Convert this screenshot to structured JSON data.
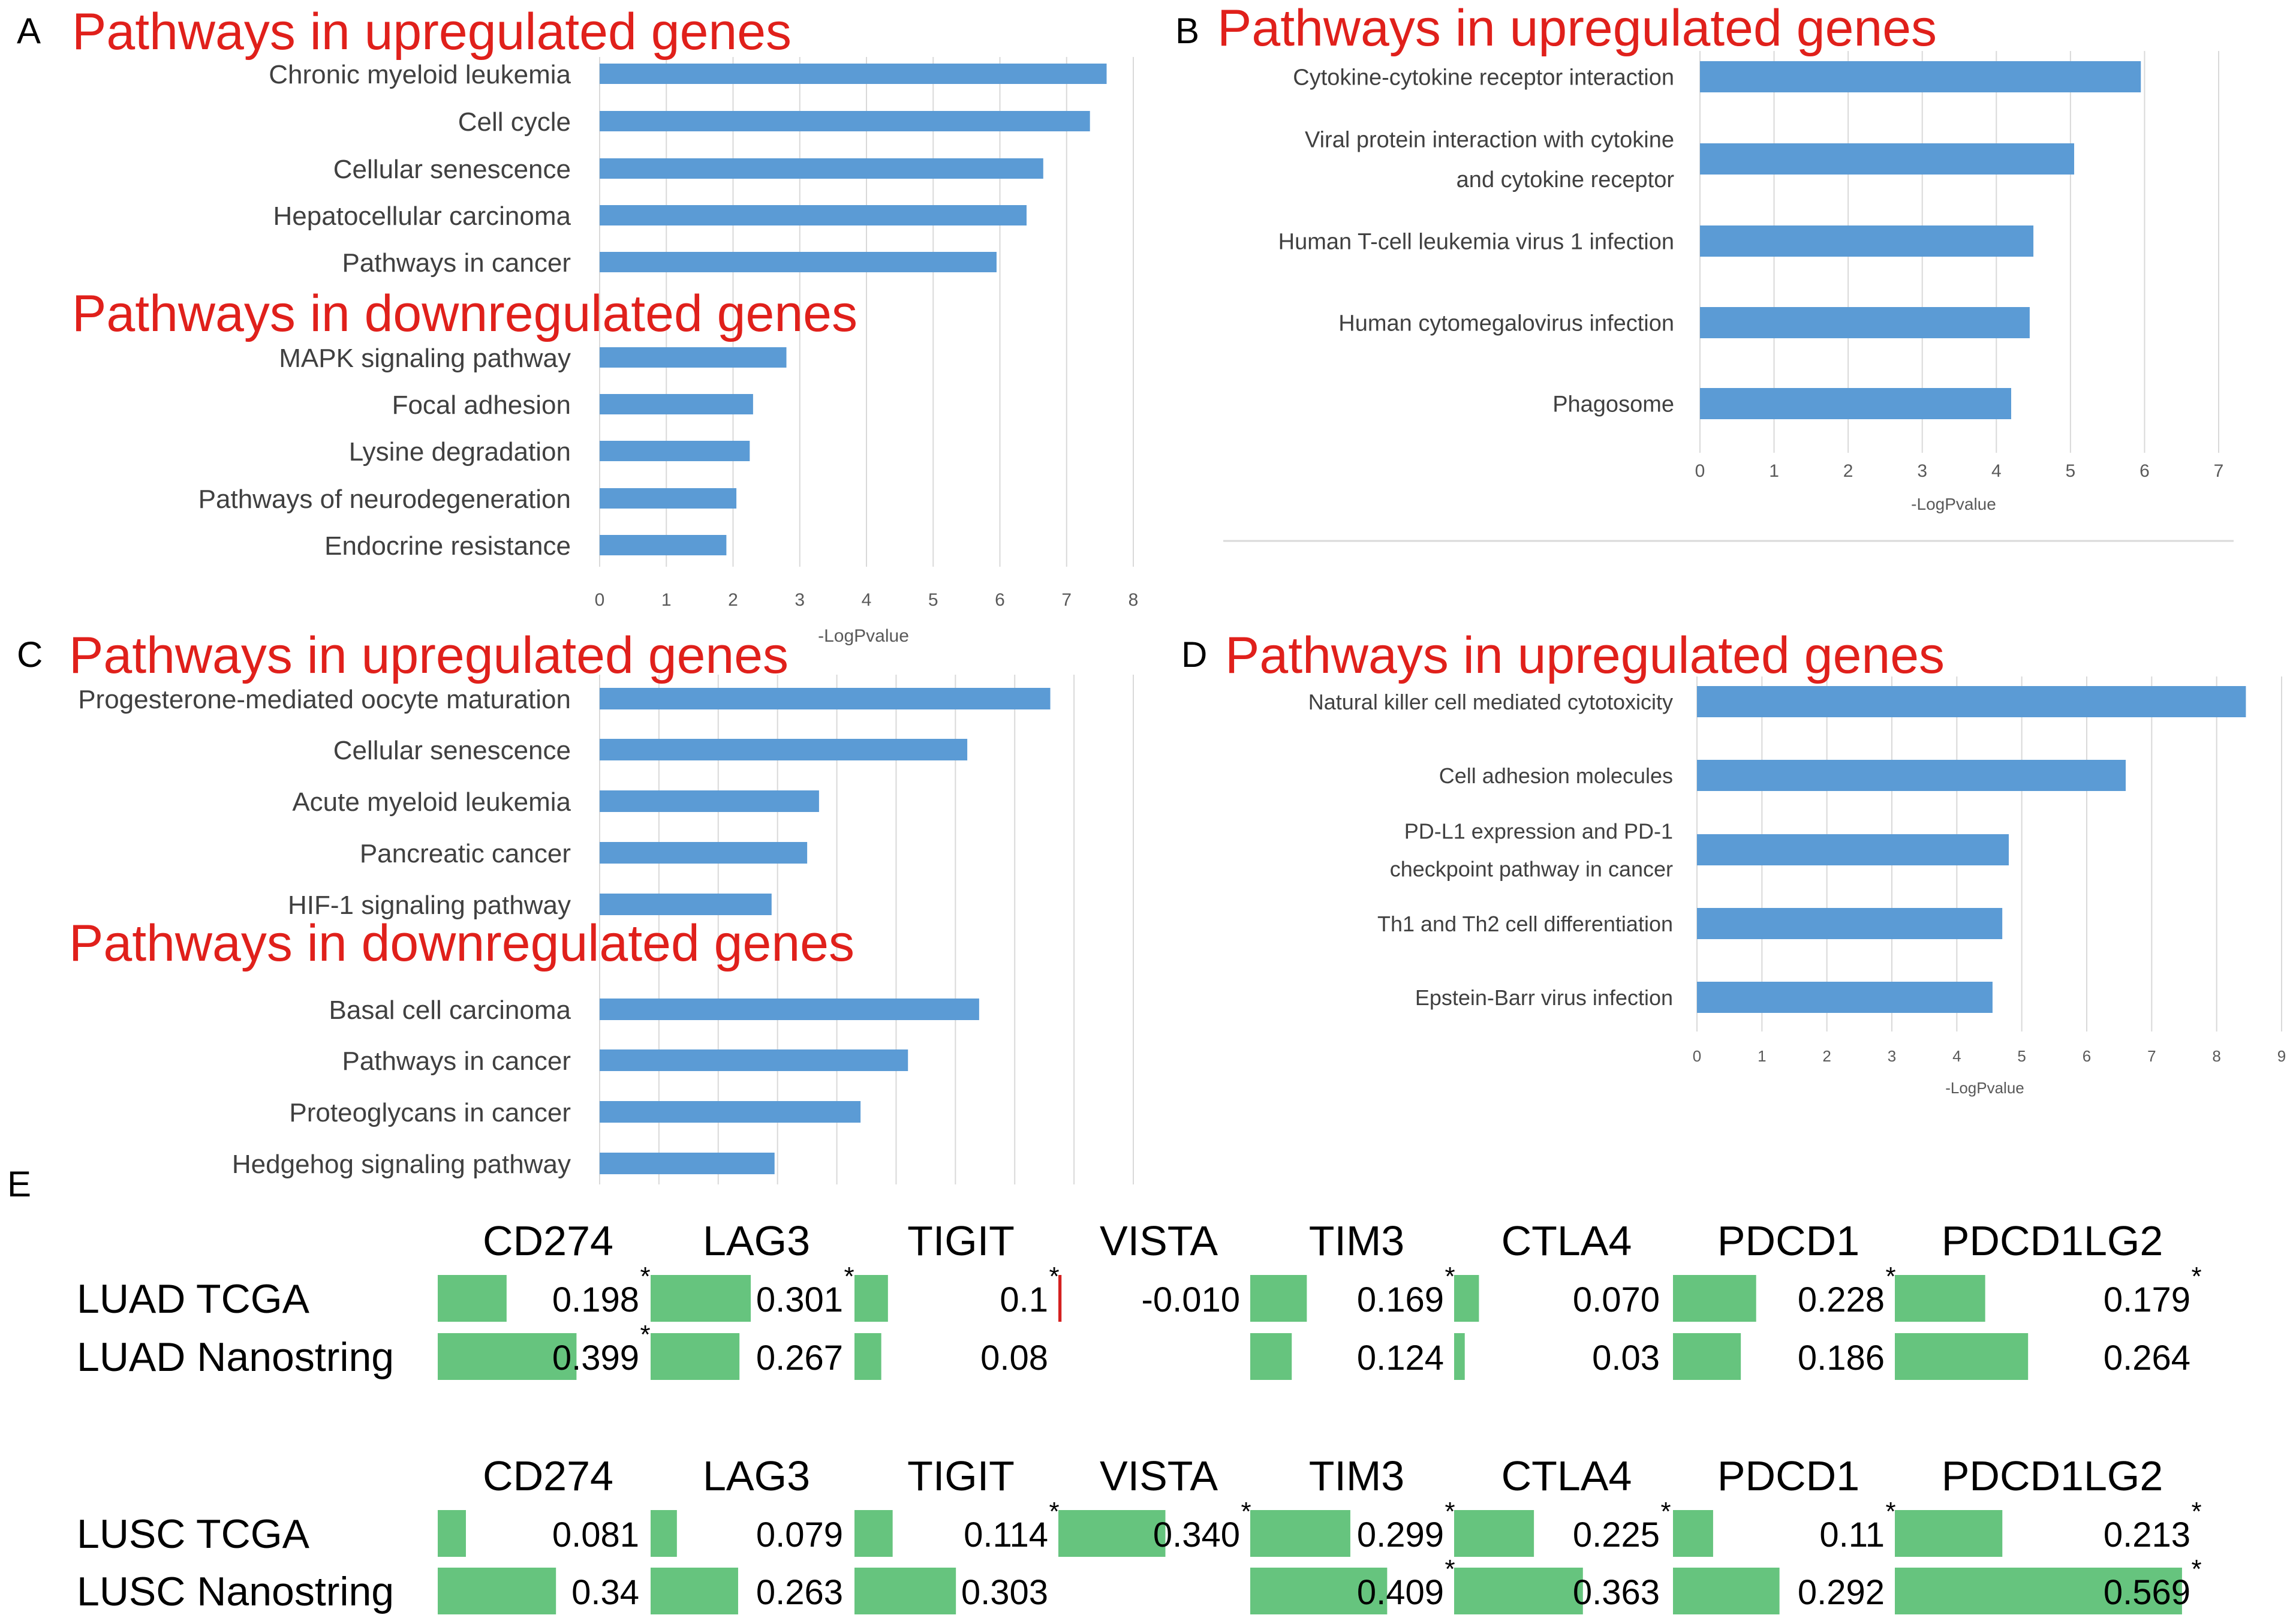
{
  "figure": {
    "panel_letters": [
      "A",
      "B",
      "C",
      "D",
      "E"
    ]
  },
  "chart_data": [
    {
      "id": "A",
      "type": "bar",
      "orientation": "horizontal",
      "xlabel": "-LogPvalue",
      "xlim": [
        0,
        8
      ],
      "xticks": [
        0,
        1,
        2,
        3,
        4,
        5,
        6,
        7,
        8
      ],
      "groups": [
        {
          "title": "Pathways in upregulated genes",
          "categories": [
            "Chronic myeloid leukemia",
            "Cell cycle",
            "Cellular senescence",
            "Hepatocellular carcinoma",
            "Pathways in cancer"
          ],
          "values": [
            7.6,
            7.35,
            6.65,
            6.4,
            5.95
          ]
        },
        {
          "title": "Pathways in downregulated genes",
          "categories": [
            "MAPK signaling pathway",
            "Focal adhesion",
            "Lysine degradation",
            "Pathways of neurodegeneration",
            "Endocrine resistance"
          ],
          "values": [
            2.8,
            2.3,
            2.25,
            2.05,
            1.9
          ]
        }
      ]
    },
    {
      "id": "B",
      "type": "bar",
      "orientation": "horizontal",
      "xlabel": "-LogPvalue",
      "xlim": [
        0,
        7
      ],
      "xticks": [
        0,
        1,
        2,
        3,
        4,
        5,
        6,
        7
      ],
      "groups": [
        {
          "title": "Pathways in upregulated genes",
          "categories": [
            [
              "Cytokine-cytokine receptor interaction"
            ],
            [
              "Viral protein interaction with cytokine",
              "and cytokine receptor"
            ],
            [
              "Human T-cell leukemia virus 1 infection"
            ],
            [
              "Human cytomegalovirus infection"
            ],
            [
              "Phagosome"
            ]
          ],
          "values": [
            5.95,
            5.05,
            4.5,
            4.45,
            4.2
          ]
        }
      ]
    },
    {
      "id": "C",
      "type": "bar",
      "orientation": "horizontal",
      "xlabel": "",
      "xlim": [
        0,
        9
      ],
      "groups": [
        {
          "title": "Pathways in upregulated genes",
          "categories": [
            "Progesterone-mediated oocyte maturation",
            "Cellular senescence",
            "Acute myeloid leukemia",
            "Pancreatic cancer",
            "HIF-1 signaling pathway"
          ],
          "values": [
            7.6,
            6.2,
            3.7,
            3.5,
            2.9
          ]
        },
        {
          "title": "Pathways in downregulated genes",
          "categories": [
            "Basal cell carcinoma",
            "Pathways in cancer",
            "Proteoglycans in cancer",
            "Hedgehog signaling pathway"
          ],
          "values": [
            6.4,
            5.2,
            4.4,
            2.95
          ]
        }
      ]
    },
    {
      "id": "D",
      "type": "bar",
      "orientation": "horizontal",
      "xlabel": "-LogPvalue",
      "xlim": [
        0,
        9
      ],
      "xticks": [
        0,
        1,
        2,
        3,
        4,
        5,
        6,
        7,
        8,
        9
      ],
      "groups": [
        {
          "title": "Pathways in upregulated genes",
          "categories": [
            [
              "Natural killer cell mediated cytotoxicity"
            ],
            [
              "Cell adhesion molecules"
            ],
            [
              "PD-L1 expression and PD-1",
              "checkpoint pathway in cancer"
            ],
            [
              "Th1 and Th2 cell differentiation"
            ],
            [
              "Epstein-Barr virus infection"
            ]
          ],
          "values": [
            8.45,
            6.6,
            4.8,
            4.7,
            4.55
          ]
        }
      ]
    },
    {
      "id": "E",
      "type": "table",
      "blocks": [
        {
          "columns": [
            "CD274",
            "LAG3",
            "TIGIT",
            "VISTA",
            "TIM3",
            "CTLA4",
            "PDCD1",
            "PDCD1LG2"
          ],
          "rows": [
            {
              "label": "LUAD TCGA",
              "values": [
                "0.198",
                "0.301",
                "0.1",
                "-0.010",
                "0.169",
                "0.070",
                "0.228",
                "0.179"
              ],
              "num": [
                0.198,
                0.301,
                0.1,
                -0.01,
                0.169,
                0.07,
                0.228,
                0.179
              ],
              "significant": [
                true,
                true,
                true,
                false,
                true,
                false,
                true,
                true
              ]
            },
            {
              "label": "LUAD Nanostring",
              "values": [
                "0.399",
                "0.267",
                "0.08",
                "",
                "0.124",
                "0.03",
                "0.186",
                "0.264"
              ],
              "num": [
                0.399,
                0.267,
                0.08,
                null,
                0.124,
                0.03,
                0.186,
                0.264
              ],
              "significant": [
                true,
                false,
                false,
                false,
                false,
                false,
                false,
                false
              ]
            }
          ]
        },
        {
          "columns": [
            "CD274",
            "LAG3",
            "TIGIT",
            "VISTA",
            "TIM3",
            "CTLA4",
            "PDCD1",
            "PDCD1LG2"
          ],
          "rows": [
            {
              "label": "LUSC TCGA",
              "values": [
                "0.081",
                "0.079",
                "0.114",
                "0.340",
                "0.299",
                "0.225",
                "0.11",
                "0.213"
              ],
              "num": [
                0.081,
                0.079,
                0.114,
                0.34,
                0.299,
                0.225,
                0.11,
                0.213
              ],
              "significant": [
                false,
                false,
                true,
                true,
                true,
                true,
                true,
                true
              ]
            },
            {
              "label": "LUSC Nanostring",
              "values": [
                "0.34",
                "0.263",
                "0.303",
                "",
                "0.409",
                "0.363",
                "0.292",
                "0.569"
              ],
              "num": [
                0.34,
                0.263,
                0.303,
                null,
                0.409,
                0.363,
                0.292,
                0.569
              ],
              "significant": [
                false,
                false,
                false,
                false,
                true,
                false,
                false,
                true
              ]
            }
          ]
        }
      ],
      "bar_full_scale": 0.6
    }
  ],
  "colors": {
    "bar": "#5b9bd5",
    "heading": "#e0201b",
    "label": "#404040",
    "tick": "#595959",
    "grid": "#d9d9d9",
    "cell_bar": "#66c47e",
    "negative_bar": "#d42020",
    "text": "#000000"
  }
}
